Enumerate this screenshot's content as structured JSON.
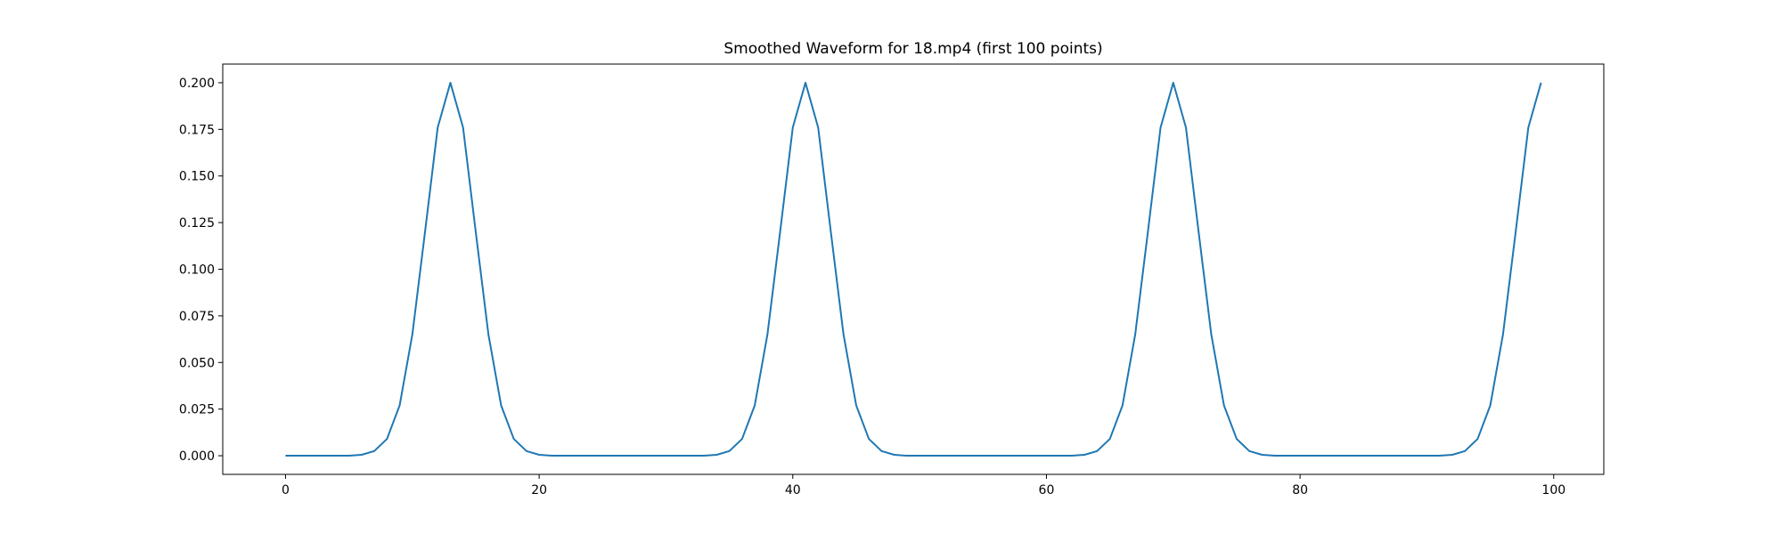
{
  "chart_data": {
    "type": "line",
    "title": "Smoothed Waveform for 18.mp4 (first 100 points)",
    "xlabel": "",
    "ylabel": "",
    "xlim": [
      -4.95,
      103.95
    ],
    "ylim": [
      -0.01,
      0.21
    ],
    "xticks": [
      0,
      20,
      40,
      60,
      80,
      100
    ],
    "xtick_labels": [
      "0",
      "20",
      "40",
      "60",
      "80",
      "100"
    ],
    "yticks": [
      0.0,
      0.025,
      0.05,
      0.075,
      0.1,
      0.125,
      0.15,
      0.175,
      0.2
    ],
    "ytick_labels": [
      "0.000",
      "0.025",
      "0.050",
      "0.075",
      "0.100",
      "0.125",
      "0.150",
      "0.175",
      "0.200"
    ],
    "grid": false,
    "legend": "none",
    "line_color": "#1f77b4",
    "series": [
      {
        "x": [
          0,
          1,
          2,
          3,
          4,
          5,
          6,
          7,
          8,
          9,
          10,
          11,
          12,
          13,
          14,
          15,
          16,
          17,
          18,
          19,
          20,
          21,
          22,
          23,
          24,
          25,
          26,
          27,
          28,
          29,
          30,
          31,
          32,
          33,
          34,
          35,
          36,
          37,
          38,
          39,
          40,
          41,
          42,
          43,
          44,
          45,
          46,
          47,
          48,
          49,
          50,
          51,
          52,
          53,
          54,
          55,
          56,
          57,
          58,
          59,
          60,
          61,
          62,
          63,
          64,
          65,
          66,
          67,
          68,
          69,
          70,
          71,
          72,
          73,
          74,
          75,
          76,
          77,
          78,
          79,
          80,
          81,
          82,
          83,
          84,
          85,
          86,
          87,
          88,
          89,
          90,
          91,
          92,
          93,
          94,
          95,
          96,
          97,
          98,
          99
        ],
        "values": [
          0.0,
          0.0,
          0.0,
          0.0,
          0.0,
          0.0,
          0.0005,
          0.0025,
          0.009,
          0.027,
          0.065,
          0.12,
          0.176,
          0.2,
          0.176,
          0.12,
          0.065,
          0.027,
          0.009,
          0.0025,
          0.0005,
          0.0,
          0.0,
          0.0,
          0.0,
          0.0,
          0.0,
          0.0,
          0.0,
          0.0,
          0.0,
          0.0,
          0.0,
          0.0,
          0.0005,
          0.0025,
          0.009,
          0.027,
          0.065,
          0.12,
          0.176,
          0.2,
          0.176,
          0.12,
          0.065,
          0.027,
          0.009,
          0.0025,
          0.0005,
          0.0,
          0.0,
          0.0,
          0.0,
          0.0,
          0.0,
          0.0,
          0.0,
          0.0,
          0.0,
          0.0,
          0.0,
          0.0,
          0.0,
          0.0005,
          0.0025,
          0.009,
          0.027,
          0.065,
          0.12,
          0.176,
          0.2,
          0.176,
          0.12,
          0.065,
          0.027,
          0.009,
          0.0025,
          0.0005,
          0.0,
          0.0,
          0.0,
          0.0,
          0.0,
          0.0,
          0.0,
          0.0,
          0.0,
          0.0,
          0.0,
          0.0,
          0.0,
          0.0,
          0.0005,
          0.0025,
          0.009,
          0.027,
          0.065,
          0.12,
          0.176,
          0.2
        ]
      }
    ]
  }
}
